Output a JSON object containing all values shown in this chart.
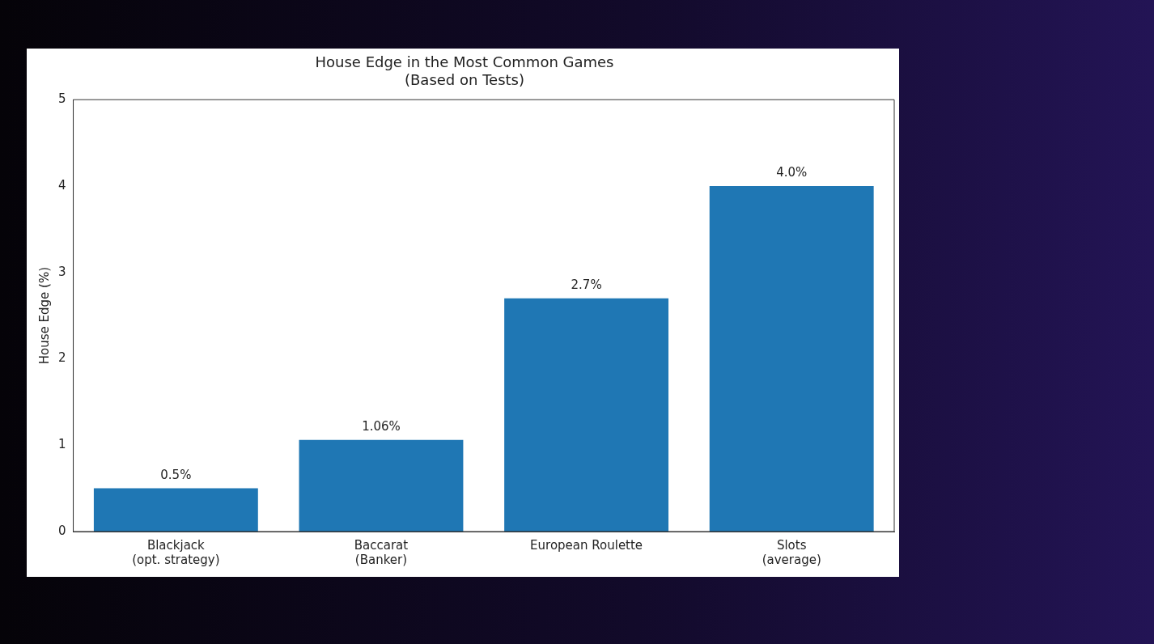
{
  "chart_data": {
    "type": "bar",
    "title": "House Edge in the Most Common Games",
    "subtitle": "(Based on Tests)",
    "ylabel": "House Edge (%)",
    "categories": [
      "Blackjack\n(opt. strategy)",
      "Baccarat\n(Banker)",
      "European Roulette",
      "Slots\n(average)"
    ],
    "values": [
      0.5,
      1.06,
      2.7,
      4.0
    ],
    "value_labels": [
      "0.5%",
      "1.06%",
      "2.7%",
      "4.0%"
    ],
    "color": "#1f77b4",
    "ylim": [
      0,
      5
    ],
    "yticks": [
      0,
      1,
      2,
      3,
      4,
      5
    ],
    "grid": false,
    "legend": false
  }
}
